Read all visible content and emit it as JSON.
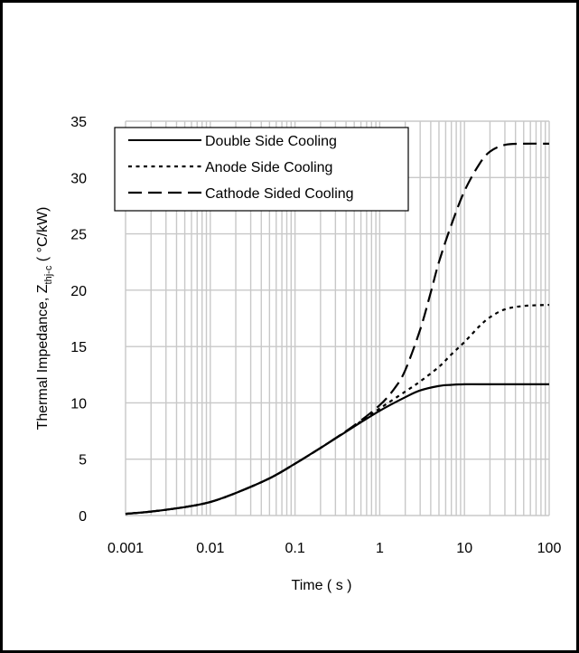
{
  "chart_data": {
    "type": "line",
    "title": "",
    "xlabel": "Time ( s )",
    "ylabel": "Thermal Impedance, Z",
    "ylabel_sub": "thj-c",
    "ylabel_unit": " ( °C/kW)",
    "x_scale": "log",
    "xlim": [
      0.001,
      100
    ],
    "ylim": [
      0,
      35
    ],
    "x_ticks": [
      0.001,
      0.01,
      0.1,
      1,
      10,
      100
    ],
    "x_tick_labels": [
      "0.001",
      "0.01",
      "0.1",
      "1",
      "10",
      "100"
    ],
    "y_ticks": [
      0,
      5,
      10,
      15,
      20,
      25,
      30,
      35
    ],
    "y_tick_labels": [
      "0",
      "5",
      "10",
      "15",
      "20",
      "25",
      "30",
      "35"
    ],
    "grid": true,
    "legend_position": "top-left",
    "series": [
      {
        "name": "Double Side Cooling",
        "dash": "solid",
        "x": [
          0.001,
          0.002,
          0.005,
          0.01,
          0.02,
          0.05,
          0.1,
          0.2,
          0.5,
          1,
          2,
          3,
          5,
          7,
          10,
          20,
          50,
          100
        ],
        "y": [
          0.15,
          0.35,
          0.75,
          1.2,
          2.0,
          3.3,
          4.6,
          6.0,
          7.9,
          9.3,
          10.5,
          11.1,
          11.5,
          11.6,
          11.65,
          11.65,
          11.65,
          11.65
        ]
      },
      {
        "name": "Anode Side Cooling",
        "dash": "dotted",
        "x": [
          0.001,
          0.002,
          0.005,
          0.01,
          0.02,
          0.05,
          0.1,
          0.2,
          0.5,
          1,
          2,
          3,
          5,
          7,
          10,
          15,
          20,
          30,
          50,
          100
        ],
        "y": [
          0.15,
          0.35,
          0.75,
          1.2,
          2.0,
          3.3,
          4.6,
          6.0,
          7.95,
          9.5,
          11.0,
          11.9,
          13.2,
          14.3,
          15.4,
          16.8,
          17.6,
          18.3,
          18.6,
          18.7
        ]
      },
      {
        "name": "Cathode Sided Cooling",
        "dash": "dashed",
        "x": [
          0.001,
          0.002,
          0.005,
          0.01,
          0.02,
          0.05,
          0.1,
          0.2,
          0.5,
          1,
          1.5,
          2,
          3,
          4,
          5,
          7,
          10,
          15,
          20,
          30,
          50,
          100
        ],
        "y": [
          0.15,
          0.35,
          0.75,
          1.2,
          2.0,
          3.3,
          4.6,
          6.0,
          8.0,
          9.8,
          11.3,
          12.9,
          16.5,
          19.8,
          22.5,
          25.8,
          28.8,
          31.2,
          32.3,
          32.9,
          33.0,
          33.0
        ]
      }
    ]
  }
}
